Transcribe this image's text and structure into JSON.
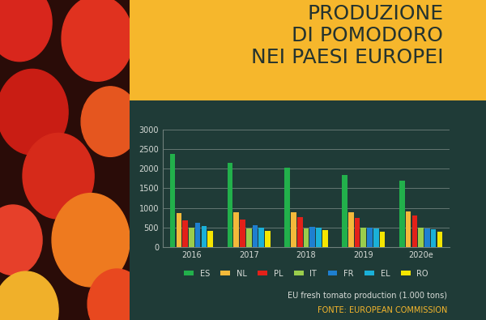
{
  "chart_data": {
    "type": "bar",
    "title": "PRODUZIONE\nDI POMODORO\nNEI PAESI EUROPEI",
    "subtitle": "EU fresh tomato production (1.000 tons)",
    "source": "FONTE: EUROPEAN COMMISSION",
    "categories": [
      "2016",
      "2017",
      "2018",
      "2019",
      "2020e"
    ],
    "series": [
      {
        "name": "ES",
        "color": "#22b04b",
        "values": [
          2380,
          2150,
          2030,
          1840,
          1700
        ]
      },
      {
        "name": "NL",
        "color": "#f4b93a",
        "values": [
          870,
          880,
          890,
          890,
          900
        ]
      },
      {
        "name": "PL",
        "color": "#e32119",
        "values": [
          680,
          700,
          760,
          750,
          800
        ]
      },
      {
        "name": "IT",
        "color": "#9acd4c",
        "values": [
          500,
          470,
          470,
          490,
          490
        ]
      },
      {
        "name": "FR",
        "color": "#1e7fd0",
        "values": [
          620,
          550,
          510,
          490,
          480
        ]
      },
      {
        "name": "EL",
        "color": "#1ab0d8",
        "values": [
          530,
          500,
          500,
          470,
          460
        ]
      },
      {
        "name": "RO",
        "color": "#f5e600",
        "values": [
          410,
          410,
          430,
          390,
          390
        ]
      }
    ],
    "ylim": [
      0,
      3000
    ],
    "yticks": [
      0,
      500,
      1000,
      1500,
      2000,
      2500,
      3000
    ],
    "grid": true,
    "legend": "upper center"
  }
}
